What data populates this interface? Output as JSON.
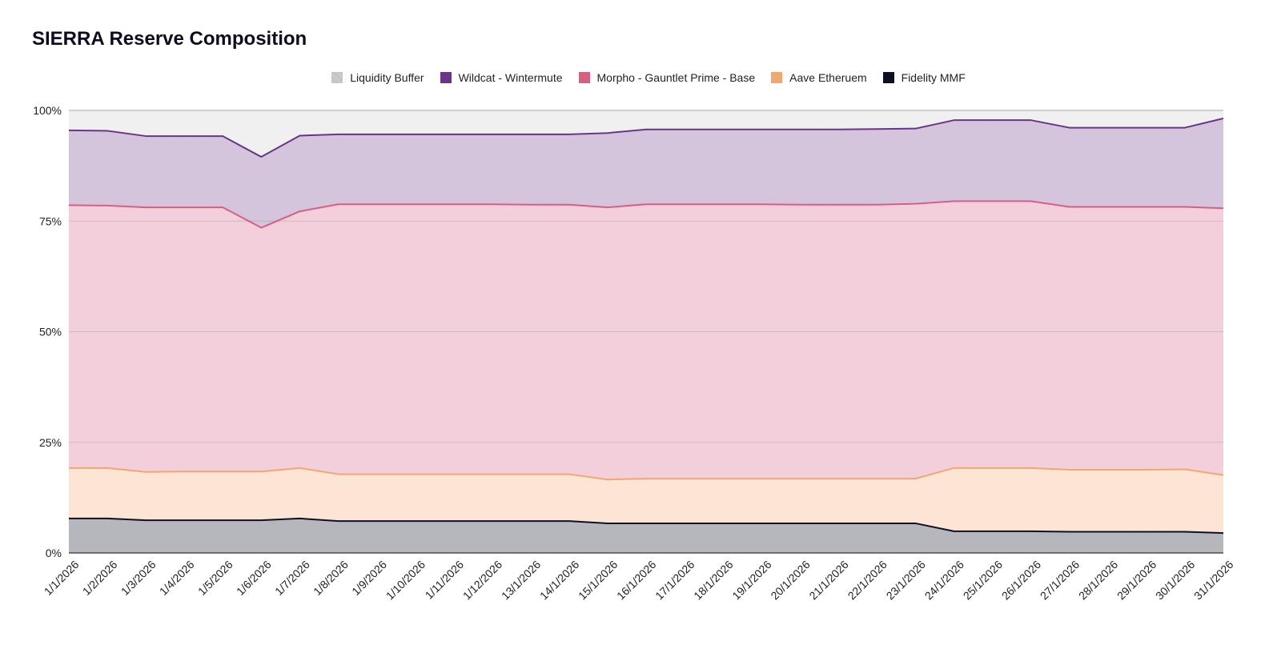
{
  "chart_data": {
    "type": "area",
    "stacked": true,
    "title": "SIERRA Reserve Composition",
    "legend_position": "top",
    "grid": true,
    "ylim": [
      0,
      100
    ],
    "yticks": [
      {
        "value": 0,
        "label": "0%"
      },
      {
        "value": 25,
        "label": "25%"
      },
      {
        "value": 50,
        "label": "50%"
      },
      {
        "value": 75,
        "label": "75%"
      },
      {
        "value": 100,
        "label": "100%"
      }
    ],
    "categories": [
      "1/1/2026",
      "1/2/2026",
      "1/3/2026",
      "1/4/2026",
      "1/5/2026",
      "1/6/2026",
      "1/7/2026",
      "1/8/2026",
      "1/9/2026",
      "1/10/2026",
      "1/11/2026",
      "1/12/2026",
      "13/1/2026",
      "14/1/2026",
      "15/1/2026",
      "16/1/2026",
      "17/1/2026",
      "18/1/2026",
      "19/1/2026",
      "20/1/2026",
      "21/1/2026",
      "22/1/2026",
      "23/1/2026",
      "24/1/2026",
      "25/1/2026",
      "26/1/2026",
      "27/1/2026",
      "28/1/2026",
      "29/1/2026",
      "30/1/2026",
      "31/1/2026"
    ],
    "series": [
      {
        "name": "Fidelity MMF",
        "line_color": "#0f0f24",
        "fill_color": "#b6b7bc",
        "values": [
          7.8,
          7.8,
          7.4,
          7.4,
          7.4,
          7.4,
          7.8,
          7.2,
          7.2,
          7.2,
          7.2,
          7.2,
          7.2,
          7.2,
          6.7,
          6.7,
          6.7,
          6.7,
          6.7,
          6.7,
          6.7,
          6.7,
          6.7,
          4.9,
          4.9,
          4.9,
          4.8,
          4.8,
          4.8,
          4.8,
          4.5
        ]
      },
      {
        "name": "Aave Etheruem",
        "line_color": "#f0a870",
        "fill_color": "#fce5d4",
        "values": [
          11.4,
          11.4,
          10.9,
          11.0,
          11.0,
          11.0,
          11.4,
          10.6,
          10.6,
          10.6,
          10.6,
          10.6,
          10.6,
          10.6,
          9.9,
          10.1,
          10.1,
          10.1,
          10.1,
          10.1,
          10.1,
          10.1,
          10.1,
          14.3,
          14.3,
          14.3,
          14.0,
          14.0,
          14.0,
          14.1,
          13.1
        ]
      },
      {
        "name": "Morpho - Gauntlet Prime - Base",
        "line_color": "#d85f80",
        "fill_color": "#f2cfda",
        "values": [
          59.4,
          59.3,
          59.8,
          59.7,
          59.7,
          55.1,
          58.0,
          61.0,
          61.0,
          61.0,
          61.0,
          61.0,
          60.9,
          60.9,
          61.5,
          62.0,
          62.0,
          62.0,
          62.0,
          61.9,
          61.9,
          61.9,
          62.1,
          60.3,
          60.3,
          60.3,
          59.4,
          59.4,
          59.4,
          59.3,
          60.3
        ]
      },
      {
        "name": "Wildcat - Wintermute",
        "line_color": "#6a3488",
        "fill_color": "#d4c5dd",
        "values": [
          16.9,
          16.9,
          16.1,
          16.1,
          16.1,
          16.0,
          17.1,
          15.8,
          15.8,
          15.8,
          15.8,
          15.8,
          15.9,
          15.9,
          16.8,
          16.9,
          16.9,
          16.9,
          16.9,
          17.0,
          17.0,
          17.1,
          17.0,
          18.3,
          18.3,
          18.3,
          17.9,
          17.9,
          17.9,
          17.9,
          20.3
        ]
      },
      {
        "name": "Liquidity Buffer",
        "line_color": "#d0d0d0",
        "fill_color": "#f0f0f0",
        "hatched_swatch": true,
        "values": [
          4.5,
          4.6,
          5.8,
          5.8,
          5.8,
          10.5,
          5.7,
          5.4,
          5.4,
          5.4,
          5.4,
          5.4,
          5.4,
          5.4,
          5.1,
          4.3,
          4.3,
          4.3,
          4.3,
          4.3,
          4.3,
          4.2,
          4.1,
          2.2,
          2.2,
          2.2,
          3.9,
          3.9,
          3.9,
          3.9,
          1.8
        ]
      }
    ],
    "legend_order": [
      "Liquidity Buffer",
      "Wildcat - Wintermute",
      "Morpho - Gauntlet Prime - Base",
      "Aave Etheruem",
      "Fidelity MMF"
    ]
  }
}
